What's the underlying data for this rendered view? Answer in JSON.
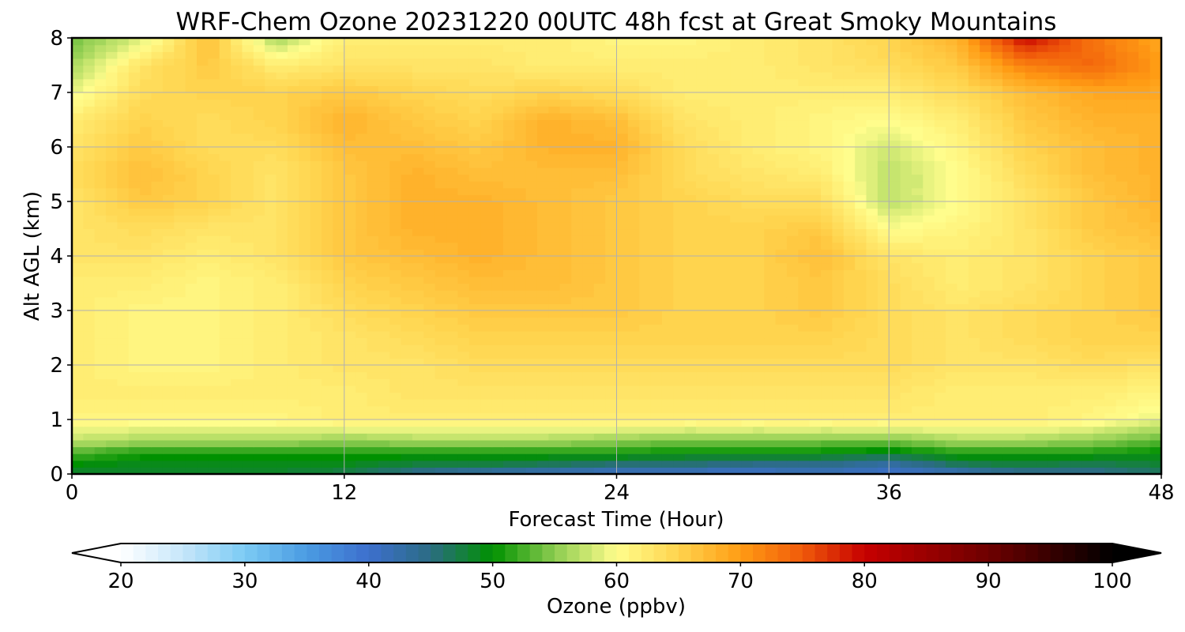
{
  "chart_data": {
    "type": "heatmap",
    "title": "WRF-Chem Ozone  20231220 00UTC 48h fcst at Great Smoky Mountains",
    "xlabel": "Forecast Time (Hour)",
    "ylabel": "Alt AGL (km)",
    "xlim": [
      0,
      48
    ],
    "ylim": [
      0,
      8
    ],
    "xticks": [
      0,
      12,
      24,
      36,
      48
    ],
    "yticks": [
      0,
      1,
      2,
      3,
      4,
      5,
      6,
      7,
      8
    ],
    "grid": true,
    "x": [
      0,
      3,
      6,
      9,
      12,
      15,
      18,
      21,
      24,
      27,
      30,
      33,
      36,
      39,
      42,
      45,
      48
    ],
    "y": [
      0,
      0.2,
      0.4,
      0.6,
      1,
      1.5,
      2,
      2.5,
      3,
      3.5,
      4,
      4.5,
      5,
      5.5,
      6,
      6.5,
      7,
      7.5,
      8
    ],
    "z": [
      [
        48,
        48,
        48,
        48,
        47,
        44,
        42,
        41,
        40,
        40,
        40,
        41,
        40,
        41,
        44,
        44,
        46
      ],
      [
        50,
        49,
        49,
        49,
        49,
        48,
        48,
        47,
        46,
        46,
        45,
        45,
        43,
        47,
        48,
        47,
        48
      ],
      [
        53,
        51,
        51,
        51,
        51,
        51,
        51,
        51,
        51,
        50,
        50,
        50,
        49,
        51,
        51,
        51,
        50
      ],
      [
        57,
        56,
        56,
        56,
        55,
        56,
        56,
        56,
        55,
        54,
        54,
        54,
        54,
        56,
        56,
        55,
        53
      ],
      [
        61,
        61,
        61,
        61,
        62,
        62,
        62,
        62,
        62,
        62,
        62,
        62,
        62,
        62,
        62,
        61,
        59
      ],
      [
        62,
        62,
        62,
        62,
        62,
        63,
        63,
        63,
        63,
        63,
        63,
        63,
        63,
        62,
        62,
        62,
        61
      ],
      [
        62,
        61,
        61,
        62,
        63,
        63,
        64,
        64,
        64,
        64,
        64,
        64,
        64,
        63,
        63,
        64,
        63
      ],
      [
        62,
        61,
        61,
        62,
        63,
        64,
        65,
        65,
        65,
        65,
        65,
        65,
        64,
        63,
        64,
        65,
        65
      ],
      [
        62,
        61,
        61,
        62,
        64,
        65,
        66,
        66,
        66,
        65,
        65,
        66,
        64,
        63,
        64,
        65,
        66
      ],
      [
        62,
        62,
        61,
        62,
        65,
        66,
        67,
        67,
        66,
        65,
        65,
        66,
        64,
        62,
        63,
        65,
        66
      ],
      [
        63,
        63,
        62,
        63,
        66,
        67,
        68,
        67,
        66,
        65,
        65,
        67,
        63,
        62,
        63,
        65,
        66
      ],
      [
        63,
        64,
        63,
        63,
        66,
        68,
        68,
        67,
        66,
        65,
        65,
        66,
        60,
        61,
        63,
        66,
        67
      ],
      [
        63,
        66,
        65,
        63,
        66,
        68,
        68,
        67,
        66,
        65,
        64,
        64,
        57,
        60,
        63,
        66,
        68
      ],
      [
        64,
        67,
        65,
        63,
        66,
        68,
        67,
        67,
        67,
        64,
        63,
        62,
        57,
        60,
        64,
        67,
        68
      ],
      [
        63,
        66,
        64,
        64,
        67,
        67,
        66,
        68,
        68,
        64,
        62,
        61,
        58,
        61,
        65,
        67,
        68
      ],
      [
        62,
        65,
        64,
        65,
        68,
        66,
        65,
        68,
        67,
        63,
        62,
        61,
        60,
        62,
        66,
        68,
        68
      ],
      [
        59,
        64,
        65,
        65,
        66,
        65,
        64,
        65,
        64,
        62,
        62,
        62,
        62,
        64,
        67,
        69,
        69
      ],
      [
        56,
        63,
        66,
        62,
        63,
        63,
        63,
        62,
        62,
        62,
        62,
        63,
        64,
        66,
        72,
        74,
        70
      ],
      [
        54,
        58,
        67,
        56,
        62,
        62,
        62,
        62,
        61,
        61,
        62,
        63,
        65,
        68,
        80,
        73,
        69
      ]
    ],
    "colorbar": {
      "label": "Ozone  (ppbv)",
      "min": 20,
      "max": 100,
      "ticks": [
        20,
        30,
        40,
        50,
        60,
        70,
        80,
        90,
        100
      ],
      "extend": "both"
    }
  }
}
